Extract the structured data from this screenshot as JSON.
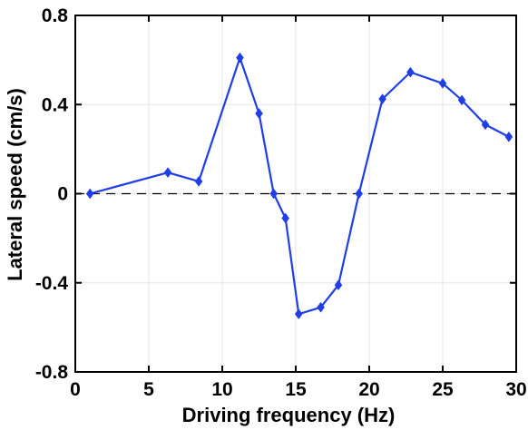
{
  "chart_data": {
    "type": "line",
    "title": "",
    "xlabel": "Driving frequency (Hz)",
    "ylabel": "Lateral speed (cm/s)",
    "xlim": [
      0,
      30
    ],
    "ylim": [
      -0.8,
      0.8
    ],
    "x_ticks": [
      0,
      5,
      10,
      15,
      20,
      25,
      30
    ],
    "y_ticks": [
      -0.8,
      -0.4,
      0,
      0.4,
      0.8
    ],
    "x_tick_labels": [
      "0",
      "5",
      "10",
      "15",
      "20",
      "25",
      "30"
    ],
    "y_tick_labels": [
      "-0.8",
      "-0.4",
      "0",
      "0.4",
      "0.8"
    ],
    "grid": true,
    "reference_line": {
      "y": 0,
      "style": "dashed",
      "color": "#000000"
    },
    "series": [
      {
        "color": "#1f3ee6",
        "marker": "diamond",
        "x": [
          1.0,
          6.3,
          8.4,
          11.2,
          12.5,
          13.5,
          14.3,
          15.2,
          16.7,
          17.9,
          19.3,
          20.9,
          22.8,
          25.0,
          26.3,
          27.9,
          29.5
        ],
        "y": [
          0.0,
          0.095,
          0.055,
          0.61,
          0.36,
          0.0,
          -0.11,
          -0.54,
          -0.51,
          -0.41,
          0.0,
          0.425,
          0.545,
          0.495,
          0.42,
          0.31,
          0.255
        ]
      }
    ]
  }
}
